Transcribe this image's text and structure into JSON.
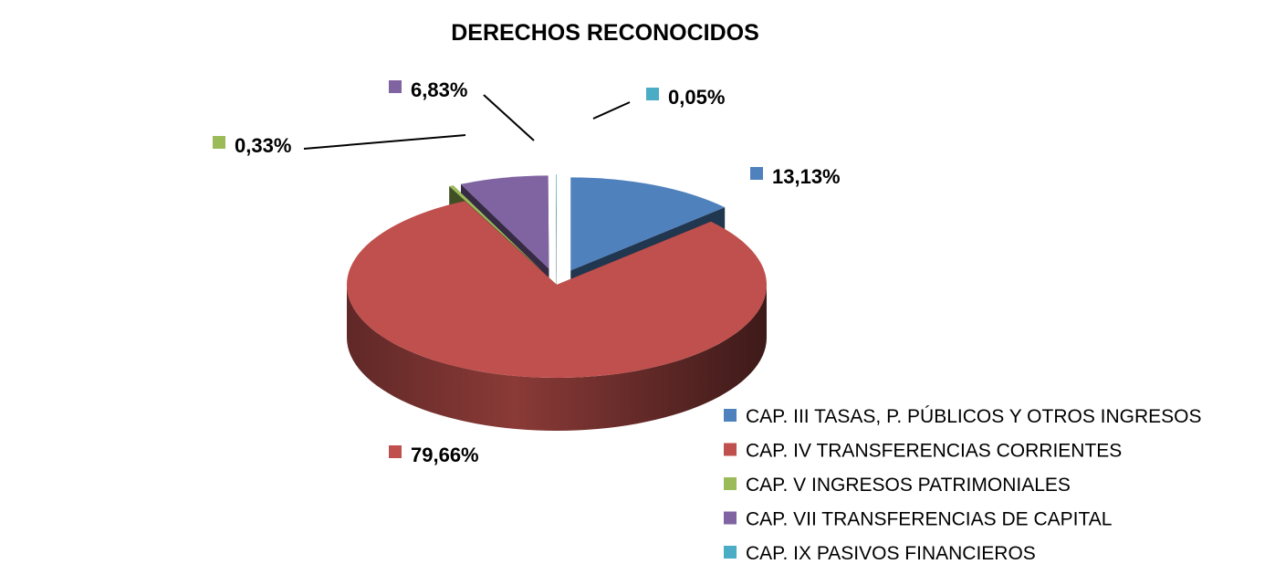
{
  "chart_data": {
    "type": "pie",
    "title": "DERECHOS RECONOCIDOS",
    "series": [
      {
        "name": "CAP. III TASAS, P. PÚBLICOS Y OTROS INGRESOS",
        "value": 13.13,
        "label": "13,13%",
        "color": "#4F81BD"
      },
      {
        "name": "CAP. IV TRANSFERENCIAS CORRIENTES",
        "value": 79.66,
        "label": "79,66%",
        "color": "#C0504D"
      },
      {
        "name": "CAP. V INGRESOS PATRIMONIALES",
        "value": 0.33,
        "label": "0,33%",
        "color": "#9BBB59"
      },
      {
        "name": "CAP. VII TRANSFERENCIAS DE CAPITAL",
        "value": 6.83,
        "label": "6,83%",
        "color": "#8064A2"
      },
      {
        "name": "CAP. IX PASIVOS FINANCIEROS",
        "value": 0.05,
        "label": "0,05%",
        "color": "#4BACC6"
      }
    ],
    "legend_position": "bottom-right",
    "style": "3d-exploded"
  }
}
